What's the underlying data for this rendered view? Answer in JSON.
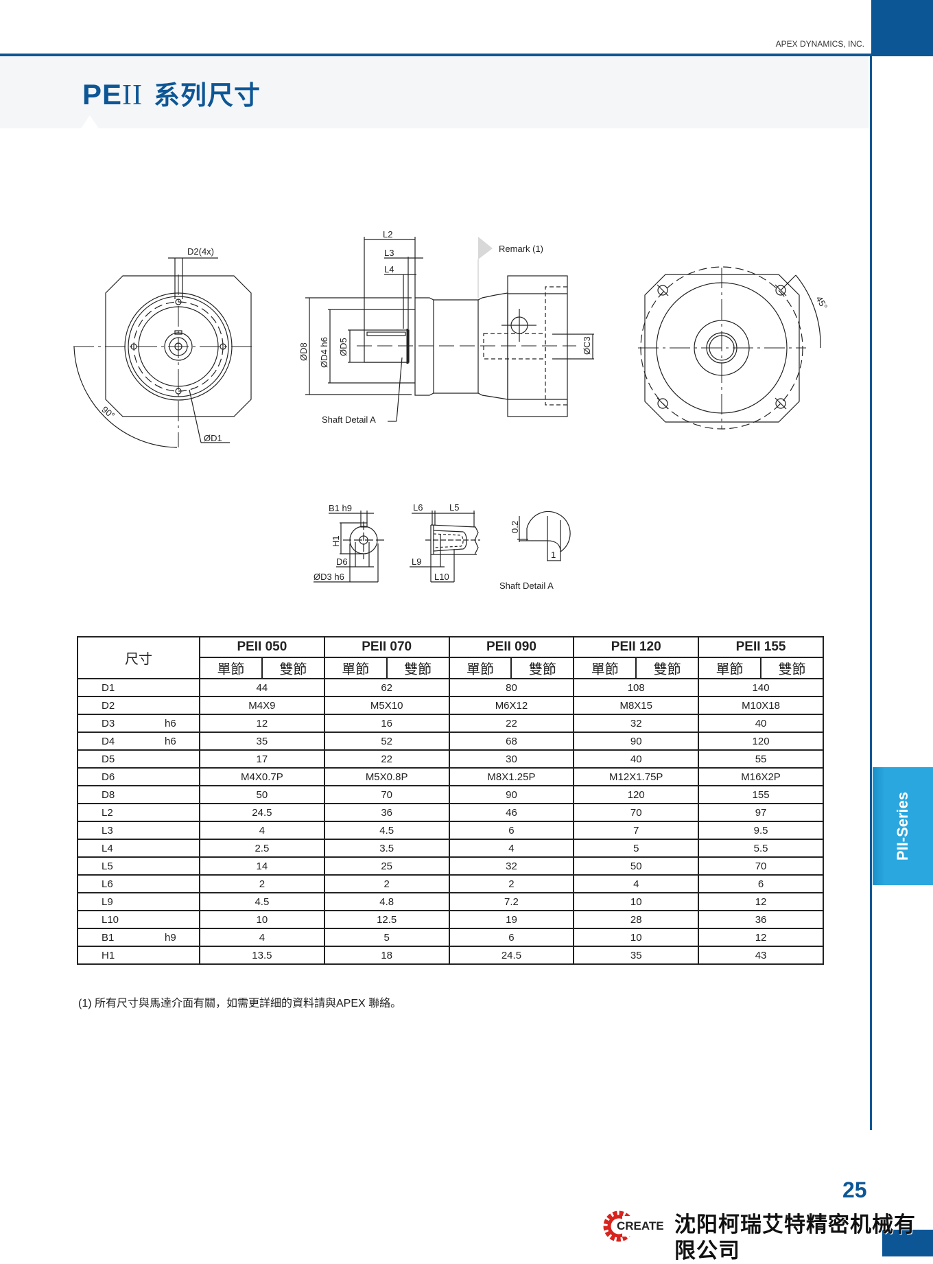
{
  "header": {
    "company": "APEX DYNAMICS, INC.",
    "title_prefix": "PE",
    "title_roman": "II",
    "title_cn": "系列尺寸"
  },
  "colors": {
    "brand": "#0d5696",
    "tab": "#2aa7df",
    "logo_red": "#d9231d"
  },
  "drawing": {
    "front": {
      "d2": "D2(4x)",
      "d1": "ØD1",
      "angle": "90°"
    },
    "side": {
      "l2": "L2",
      "l3": "L3",
      "l4": "L4",
      "d8": "ØD8",
      "d4": "ØD4 h6",
      "d5": "ØD5",
      "c3": "ØC3",
      "shaft_detail": "Shaft Detail  A",
      "remark": "Remark (1)"
    },
    "rear": {
      "angle": "45°"
    },
    "shaft": {
      "b1": "B1 h9",
      "h1": "H1",
      "d6": "D6",
      "d3": "ØD3 h6",
      "l6": "L6",
      "l5": "L5",
      "l9": "L9",
      "l10": "L10",
      "r02": "0.2",
      "r1": "1",
      "detail_title": "Shaft  Detail  A"
    }
  },
  "table": {
    "corner": "尺寸",
    "models": [
      "PEII 050",
      "PEII 070",
      "PEII 090",
      "PEII 120",
      "PEII 155"
    ],
    "stages": [
      "單節",
      "雙節"
    ],
    "rows": [
      {
        "label": "D1",
        "tol": "",
        "values": [
          "44",
          "62",
          "80",
          "108",
          "140"
        ]
      },
      {
        "label": "D2",
        "tol": "",
        "values": [
          "M4X9",
          "M5X10",
          "M6X12",
          "M8X15",
          "M10X18"
        ]
      },
      {
        "label": "D3",
        "tol": "h6",
        "values": [
          "12",
          "16",
          "22",
          "32",
          "40"
        ]
      },
      {
        "label": "D4",
        "tol": "h6",
        "values": [
          "35",
          "52",
          "68",
          "90",
          "120"
        ]
      },
      {
        "label": "D5",
        "tol": "",
        "values": [
          "17",
          "22",
          "30",
          "40",
          "55"
        ]
      },
      {
        "label": "D6",
        "tol": "",
        "values": [
          "M4X0.7P",
          "M5X0.8P",
          "M8X1.25P",
          "M12X1.75P",
          "M16X2P"
        ]
      },
      {
        "label": "D8",
        "tol": "",
        "values": [
          "50",
          "70",
          "90",
          "120",
          "155"
        ]
      },
      {
        "label": "L2",
        "tol": "",
        "values": [
          "24.5",
          "36",
          "46",
          "70",
          "97"
        ]
      },
      {
        "label": "L3",
        "tol": "",
        "values": [
          "4",
          "4.5",
          "6",
          "7",
          "9.5"
        ]
      },
      {
        "label": "L4",
        "tol": "",
        "values": [
          "2.5",
          "3.5",
          "4",
          "5",
          "5.5"
        ]
      },
      {
        "label": "L5",
        "tol": "",
        "values": [
          "14",
          "25",
          "32",
          "50",
          "70"
        ]
      },
      {
        "label": "L6",
        "tol": "",
        "values": [
          "2",
          "2",
          "2",
          "4",
          "6"
        ]
      },
      {
        "label": "L9",
        "tol": "",
        "values": [
          "4.5",
          "4.8",
          "7.2",
          "10",
          "12"
        ]
      },
      {
        "label": "L10",
        "tol": "",
        "values": [
          "10",
          "12.5",
          "19",
          "28",
          "36"
        ]
      },
      {
        "label": "B1",
        "tol": "h9",
        "values": [
          "4",
          "5",
          "6",
          "10",
          "12"
        ]
      },
      {
        "label": "H1",
        "tol": "",
        "values": [
          "13.5",
          "18",
          "24.5",
          "35",
          "43"
        ]
      }
    ]
  },
  "footnote": "(1) 所有尺寸與馬達介面有關，如需更詳細的資料請與APEX 聯絡。",
  "side_tab": "PII-Series",
  "page_number": "25",
  "footer": {
    "logo_text": "CREATE",
    "company_cn": "沈阳柯瑞艾特精密机械有限公司"
  }
}
